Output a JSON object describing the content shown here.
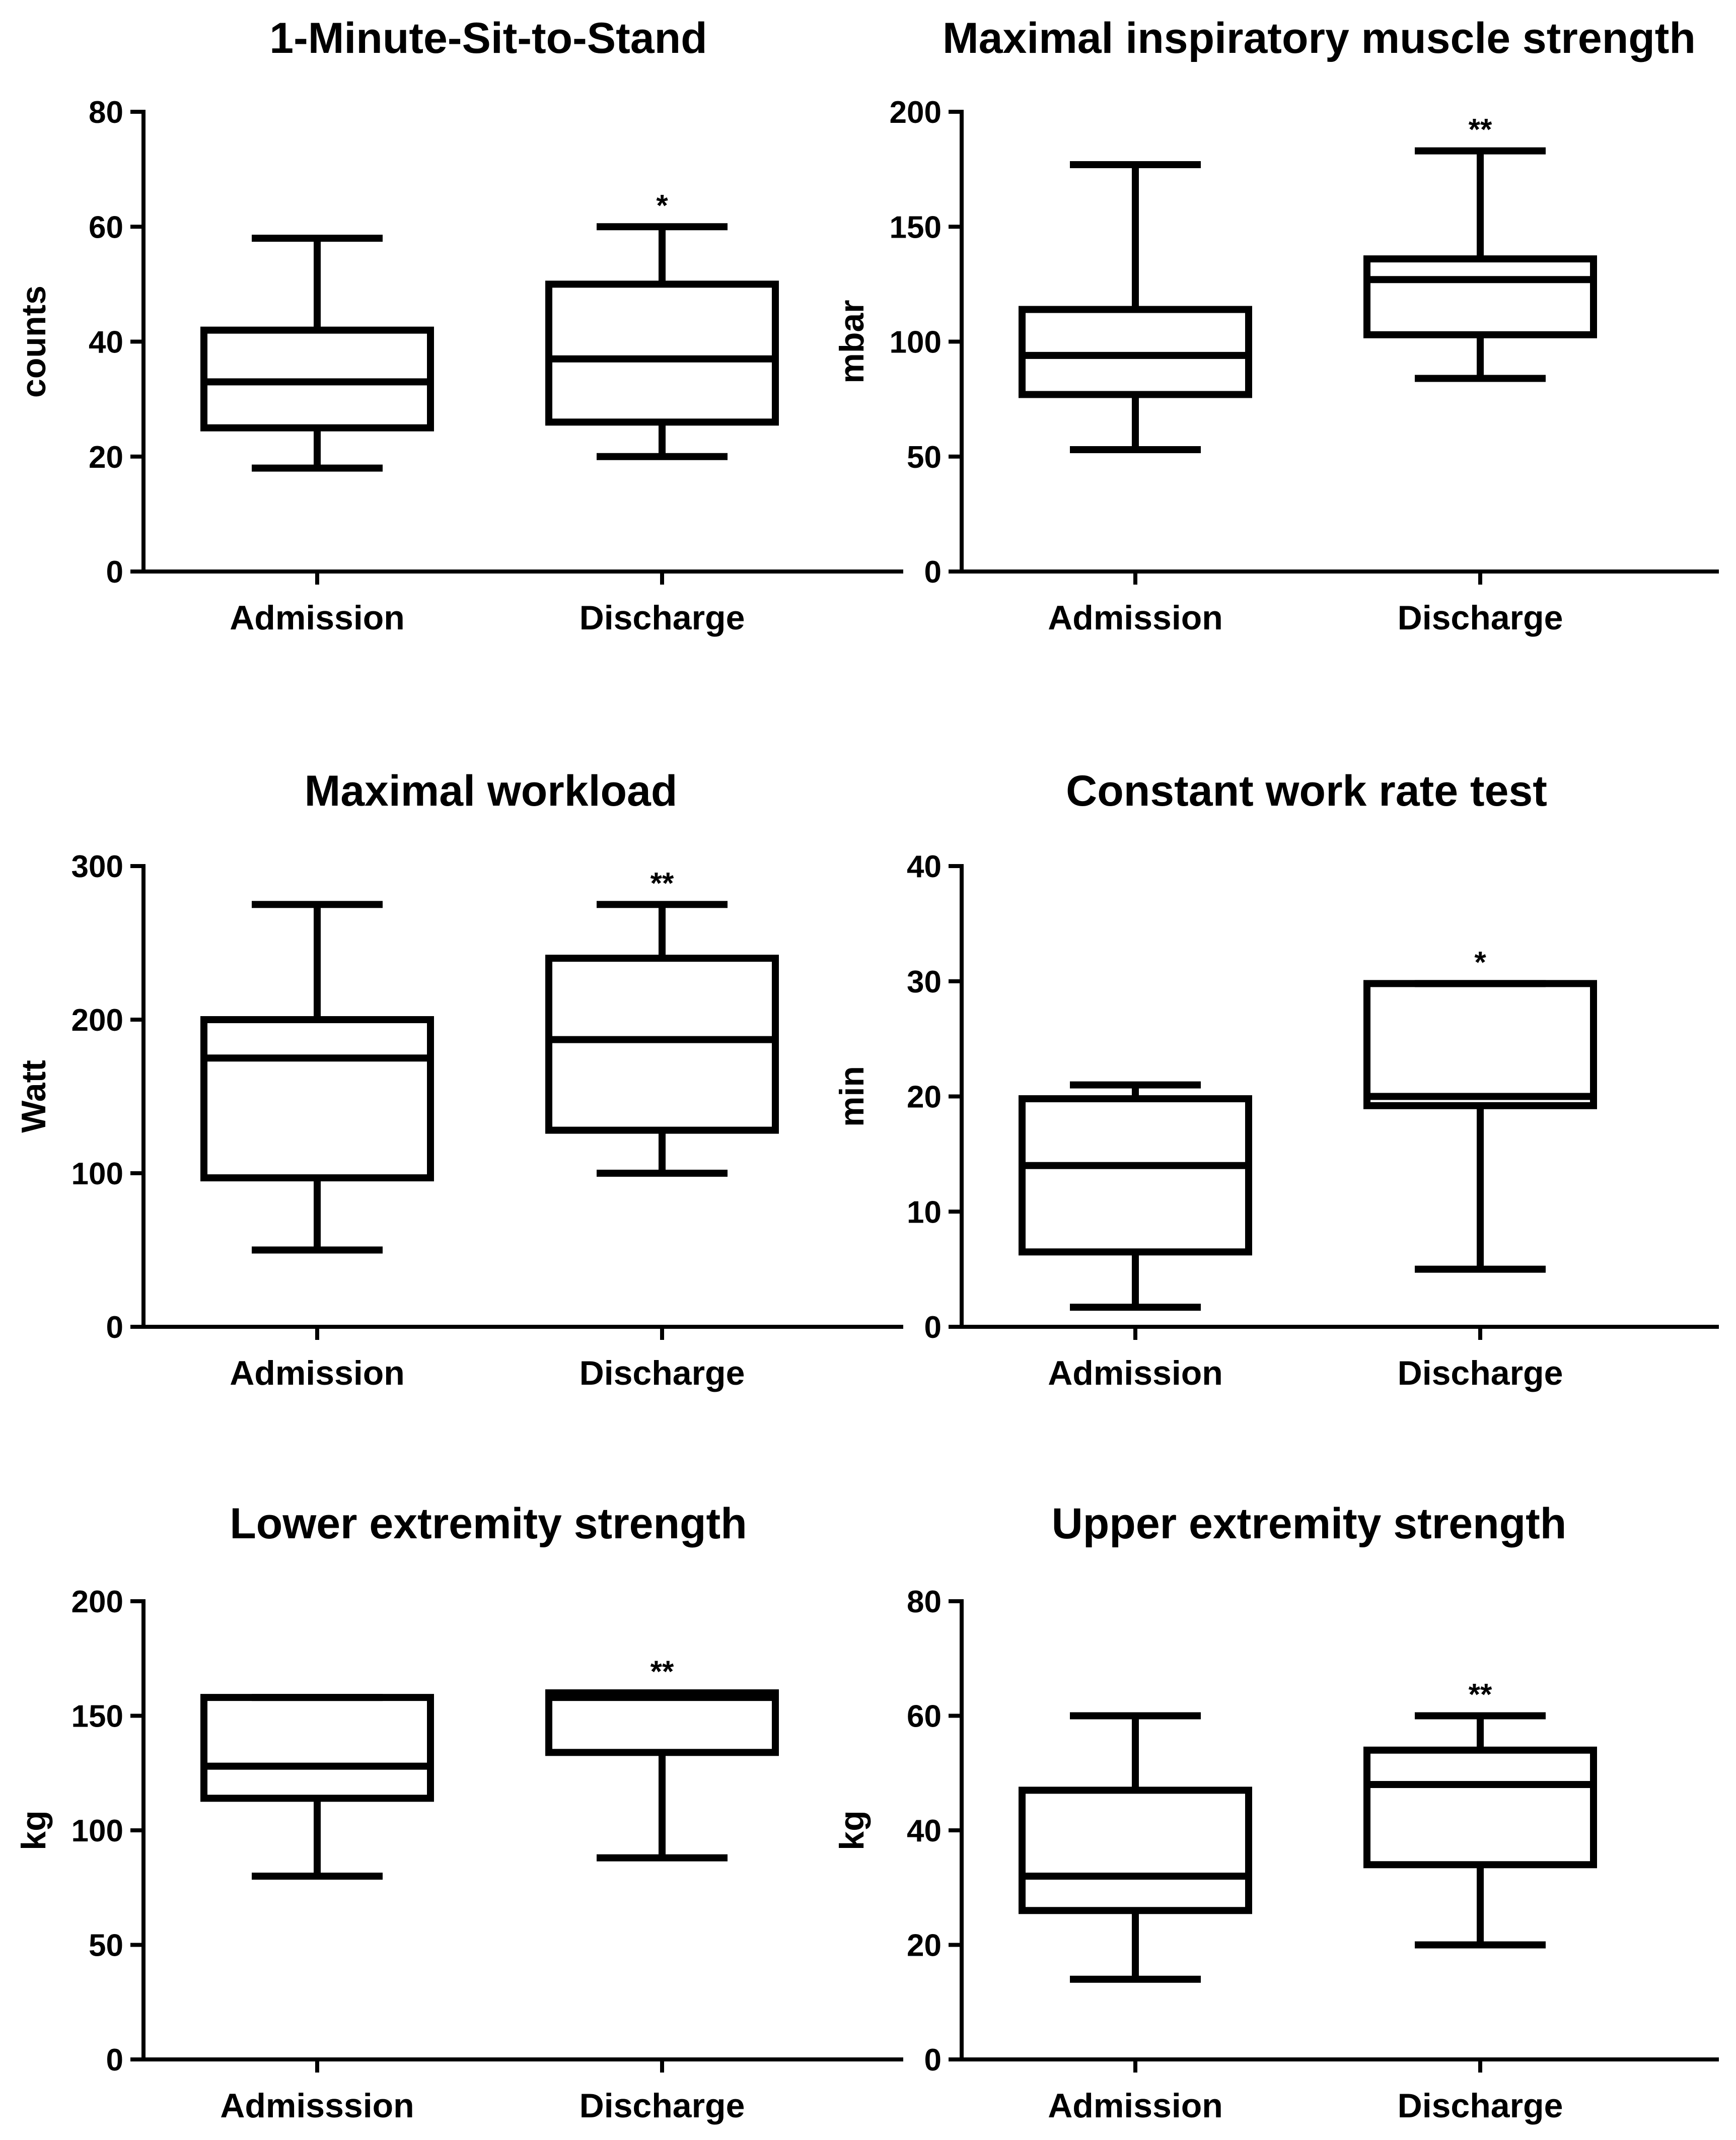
{
  "chart_data": [
    {
      "type": "box",
      "title": "1-Minute-Sit-to-Stand",
      "ylabel": "counts",
      "ylim": [
        0,
        80
      ],
      "yticks": [
        0,
        20,
        40,
        60,
        80
      ],
      "categories": [
        "Admission",
        "Discharge"
      ],
      "boxes": [
        {
          "min": 18,
          "q1": 25,
          "median": 33,
          "q3": 42,
          "max": 58,
          "sig": ""
        },
        {
          "min": 20,
          "q1": 26,
          "median": 37,
          "q3": 50,
          "max": 60,
          "sig": "*"
        }
      ]
    },
    {
      "type": "box",
      "title": "Maximal inspiratory muscle strength",
      "ylabel": "mbar",
      "ylim": [
        0,
        200
      ],
      "yticks": [
        0,
        50,
        100,
        150,
        200
      ],
      "categories": [
        "Admission",
        "Discharge"
      ],
      "boxes": [
        {
          "min": 53,
          "q1": 77,
          "median": 94,
          "q3": 114,
          "max": 177,
          "sig": ""
        },
        {
          "min": 84,
          "q1": 103,
          "median": 127,
          "q3": 136,
          "max": 183,
          "sig": "**"
        }
      ]
    },
    {
      "type": "box",
      "title": "Maximal workload",
      "ylabel": "Watt",
      "ylim": [
        0,
        300
      ],
      "yticks": [
        0,
        100,
        200,
        300
      ],
      "categories": [
        "Admission",
        "Discharge"
      ],
      "boxes": [
        {
          "min": 50,
          "q1": 97,
          "median": 175,
          "q3": 200,
          "max": 275,
          "sig": ""
        },
        {
          "min": 100,
          "q1": 128,
          "median": 187,
          "q3": 240,
          "max": 275,
          "sig": "**"
        }
      ]
    },
    {
      "type": "box",
      "title": "Constant work rate test",
      "ylabel": "min",
      "ylim": [
        0,
        40
      ],
      "yticks": [
        0,
        10,
        20,
        30,
        40
      ],
      "categories": [
        "Admission",
        "Discharge"
      ],
      "boxes": [
        {
          "min": 1.7,
          "q1": 6.5,
          "median": 14,
          "q3": 19.8,
          "max": 21,
          "sig": ""
        },
        {
          "min": 5,
          "q1": 19.2,
          "median": 20,
          "q3": 29.8,
          "max": 29.8,
          "sig": "*"
        }
      ]
    },
    {
      "type": "box",
      "title": "Lower extremity strength",
      "ylabel": "kg",
      "ylim": [
        0,
        200
      ],
      "yticks": [
        0,
        50,
        100,
        150,
        200
      ],
      "categories": [
        "Admisssion",
        "Discharge"
      ],
      "boxes": [
        {
          "min": 80,
          "q1": 114,
          "median": 128,
          "q3": 158,
          "max": 158,
          "sig": ""
        },
        {
          "min": 88,
          "q1": 134,
          "median": 158,
          "q3": 160,
          "max": 160,
          "sig": "**"
        }
      ]
    },
    {
      "type": "box",
      "title": "Upper extremity strength",
      "ylabel": "kg",
      "ylim": [
        0,
        80
      ],
      "yticks": [
        0,
        20,
        40,
        60,
        80
      ],
      "categories": [
        "Admission",
        "Discharge"
      ],
      "boxes": [
        {
          "min": 14,
          "q1": 26,
          "median": 32,
          "q3": 47,
          "max": 60,
          "sig": ""
        },
        {
          "min": 20,
          "q1": 34,
          "median": 48,
          "q3": 54,
          "max": 60,
          "sig": "**"
        }
      ]
    }
  ]
}
